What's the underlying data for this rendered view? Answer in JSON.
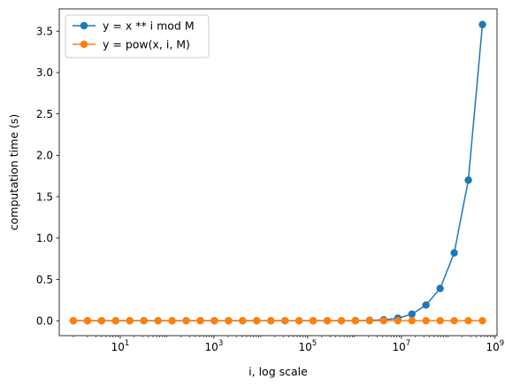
{
  "chart_data": {
    "type": "line",
    "xlabel": "i, log scale",
    "ylabel": "computation time (s)",
    "xscale": "log",
    "xlim": [
      0.5,
      1100000000.0
    ],
    "ylim": [
      -0.18,
      3.77
    ],
    "x_ticks": [
      {
        "value": 10,
        "base": "10",
        "exp": "1"
      },
      {
        "value": 1000,
        "base": "10",
        "exp": "3"
      },
      {
        "value": 100000,
        "base": "10",
        "exp": "5"
      },
      {
        "value": 10000000,
        "base": "10",
        "exp": "7"
      },
      {
        "value": 1000000000,
        "base": "10",
        "exp": "9"
      }
    ],
    "y_ticks": [
      "0.0",
      "0.5",
      "1.0",
      "1.5",
      "2.0",
      "2.5",
      "3.0",
      "3.5"
    ],
    "grid": false,
    "legend_position": "top-left",
    "x": [
      1,
      2,
      4,
      8,
      16,
      32,
      64,
      128,
      256,
      512,
      1024,
      2048,
      4096,
      8192,
      16384,
      32768,
      65536,
      131072,
      262144,
      524288,
      1048576,
      2097152,
      4194304,
      8388608,
      16777216,
      33554432,
      67108864,
      134217728,
      268435456,
      536870912
    ],
    "series": [
      {
        "name": "y = x ** i mod M",
        "color": "#1f77b4",
        "marker": "circle",
        "values": [
          0,
          0,
          0,
          0,
          0,
          0,
          0,
          0,
          0,
          0,
          0,
          0,
          0,
          0,
          0,
          0,
          0,
          0,
          0,
          0,
          0.002,
          0.005,
          0.012,
          0.03,
          0.08,
          0.19,
          0.39,
          0.82,
          1.7,
          3.58
        ]
      },
      {
        "name": "y = pow(x, i, M)",
        "color": "#ff7f0e",
        "marker": "circle",
        "values": [
          0,
          0,
          0,
          0,
          0,
          0,
          0,
          0,
          0,
          0,
          0,
          0,
          0,
          0,
          0,
          0,
          0,
          0,
          0,
          0,
          0,
          0,
          0,
          0,
          0,
          0,
          0,
          0,
          0,
          0
        ]
      }
    ]
  }
}
